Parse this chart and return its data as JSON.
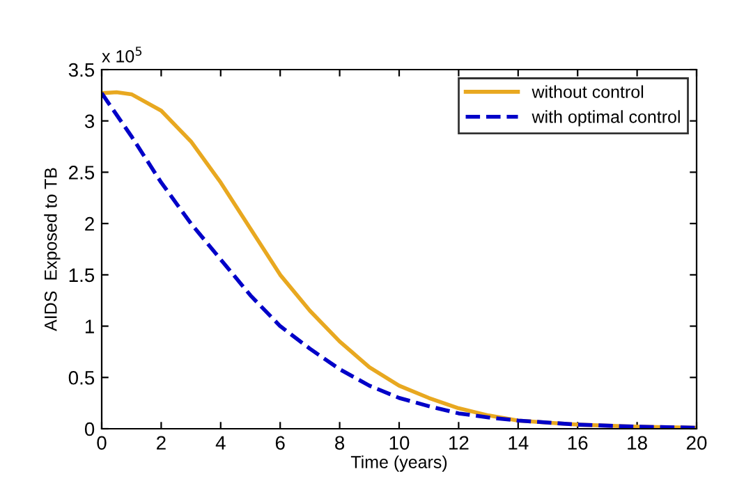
{
  "chart_data": {
    "type": "line",
    "xlabel": "Time (years)",
    "ylabel": "AIDS  Exposed to TB",
    "annotations": [
      "x 10$^{5}$"
    ],
    "series": [
      {
        "name": "without control",
        "color": "#e8a820",
        "line_style": "solid",
        "x": [
          0,
          0.5,
          1,
          2,
          3,
          4,
          5,
          6,
          7,
          8,
          9,
          10,
          11,
          12,
          13,
          14,
          15,
          16,
          18,
          20
        ],
        "values": [
          3.27,
          3.28,
          3.26,
          3.1,
          2.8,
          2.4,
          1.95,
          1.5,
          1.15,
          0.85,
          0.6,
          0.42,
          0.3,
          0.2,
          0.13,
          0.08,
          0.06,
          0.04,
          0.02,
          0.01
        ]
      },
      {
        "name": "with optimal control",
        "color": "#0000c8",
        "line_style": "dashed",
        "x": [
          0,
          1,
          2,
          3,
          4,
          5,
          6,
          7,
          8,
          9,
          10,
          11,
          12,
          13,
          14,
          16,
          18,
          20
        ],
        "values": [
          3.27,
          2.85,
          2.4,
          2.0,
          1.65,
          1.3,
          1.0,
          0.78,
          0.58,
          0.42,
          0.3,
          0.22,
          0.15,
          0.11,
          0.08,
          0.04,
          0.02,
          0.01
        ]
      }
    ],
    "xlim": [
      0,
      20
    ],
    "xticks": [
      0,
      2,
      4,
      6,
      8,
      10,
      12,
      14,
      16,
      18,
      20
    ],
    "ylim": [
      0,
      3.5
    ],
    "yticks": [
      0,
      0.5,
      1,
      1.5,
      2,
      2.5,
      3,
      3.5
    ],
    "grid": false,
    "legend": "top right",
    "marker": "none"
  }
}
